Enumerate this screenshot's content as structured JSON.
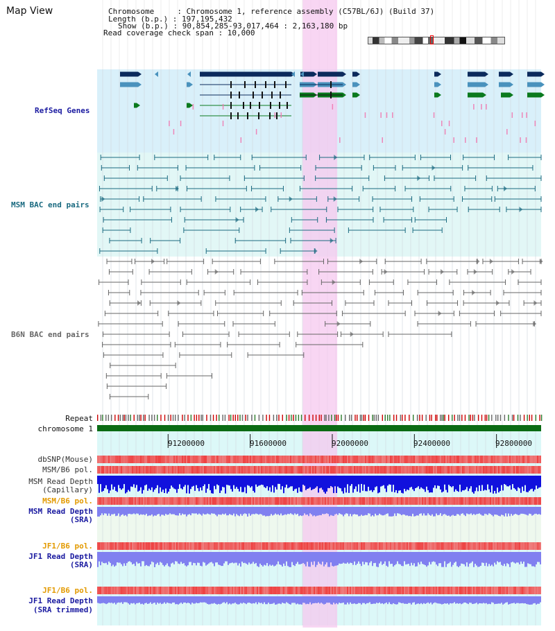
{
  "view_title": "Map View",
  "info": {
    "chromosome": "Chromosome     : Chromosome 1, reference assembly (C57BL/6J) (Build 37)",
    "length": "Length (b.p.) : 197,195,432",
    "show": "Show (b.p.) : 90,854,285-93,017,464 : 2,163,180 bp",
    "coverage": "Read coverage check span : 10,000"
  },
  "tracks": {
    "refseq": "RefSeq Genes",
    "msm_bac": "MSM BAC end pairs",
    "b6n_bac": "B6N BAC end pairs",
    "repeat": "Repeat",
    "chromosome": "chromosome 1",
    "dbsnp": "dbSNP(Mouse)",
    "msm_b6_pol": "MSM/B6 pol.",
    "msm_depth_cap_1": "MSM Read Depth",
    "msm_depth_cap_2": "(Capillary)",
    "msm_b6_pol_2": "MSM/B6 pol.",
    "msm_depth_sra_1": "MSM Read Depth",
    "msm_depth_sra_2": "(SRA)",
    "jf1_b6_pol": "JF1/B6 pol.",
    "jf1_depth_sra_1": "JF1 Read Depth",
    "jf1_depth_sra_2": "(SRA)",
    "jf1_b6_pol_2": "JF1/B6 pol.",
    "jf1_depth_trim_1": "JF1 Read Depth",
    "jf1_depth_trim_2": "(SRA trimmed)"
  },
  "axis": {
    "ticks": [
      "91200000",
      "91600000",
      "92000000",
      "92400000",
      "92800000"
    ],
    "tick_values": [
      91200000,
      91600000,
      92000000,
      92400000,
      92800000
    ],
    "range": [
      90854285,
      93017464
    ]
  },
  "highlight_range": [
    91856000,
    92024000
  ],
  "colors": {
    "refseq_dark": "#0b2a5c",
    "refseq_mid": "#4a92bd",
    "refseq_green": "#0a7a1e",
    "msm_bac": "#1a6a80",
    "b6n_bac": "#666666",
    "highlight": "#f6c8ef",
    "chromosome_bar": "#0b6b14",
    "depth_blue": "#1111dd",
    "depth_light": "#8080f0",
    "pol_red": "#ee3030"
  }
}
